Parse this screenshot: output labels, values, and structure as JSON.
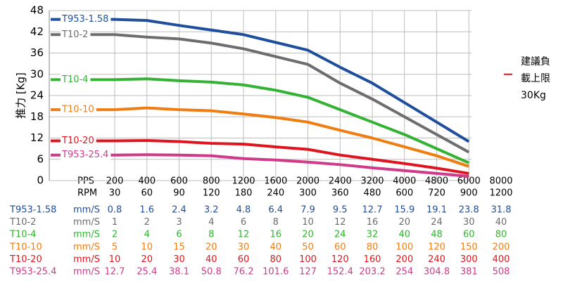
{
  "chart_data": {
    "type": "line",
    "y_label": "推力 [Kg]",
    "ylim": [
      0,
      48
    ],
    "yticks": [
      0,
      6,
      12,
      18,
      24,
      30,
      36,
      42,
      48
    ],
    "grid": true,
    "x_row_label": "PPS",
    "rpm_row_label": "RPM",
    "categories": [
      200,
      400,
      600,
      800,
      1200,
      1600,
      2000,
      2400,
      3200,
      4000,
      4800,
      6000,
      8000
    ],
    "rpm": [
      30,
      60,
      90,
      120,
      180,
      240,
      300,
      360,
      480,
      600,
      720,
      900,
      1200
    ],
    "limit": {
      "value": 30,
      "color": "#e0141e",
      "label_lines": [
        "建議負",
        "載上限",
        "30Kg"
      ]
    },
    "unit_label": "mm/S",
    "series": [
      {
        "name": "T953-1.58",
        "color": "#1f4e9c",
        "values": [
          45.5,
          45.2,
          43.8,
          42.5,
          41.2,
          39,
          36.8,
          32,
          27.5,
          22,
          16.5,
          11,
          null
        ],
        "mm_s": [
          0.8,
          1.6,
          2.4,
          3.2,
          4.8,
          6.4,
          7.9,
          9.5,
          12.7,
          15.9,
          19.1,
          23.8,
          31.8
        ]
      },
      {
        "name": "T10-2",
        "color": "#6d6d6d",
        "values": [
          41.2,
          40.5,
          40,
          38.8,
          37.2,
          35,
          32.8,
          27.5,
          23,
          18,
          13,
          8,
          null
        ],
        "mm_s": [
          1,
          2,
          3,
          4,
          6,
          8,
          10,
          12,
          16,
          20,
          24,
          30,
          40
        ]
      },
      {
        "name": "T10-4",
        "color": "#33b233",
        "values": [
          28.5,
          28.7,
          28.2,
          27.8,
          27,
          25.5,
          23.5,
          20,
          16.5,
          13,
          9,
          5,
          null
        ],
        "mm_s": [
          2,
          4,
          6,
          8,
          12,
          16,
          20,
          24,
          32,
          40,
          48,
          60,
          80
        ]
      },
      {
        "name": "T10-10",
        "color": "#f07d12",
        "values": [
          20,
          20.5,
          20,
          19.7,
          18.8,
          17.8,
          16.5,
          14.2,
          12,
          9.5,
          7,
          4,
          null
        ],
        "mm_s": [
          5,
          10,
          15,
          20,
          30,
          40,
          50,
          60,
          80,
          100,
          120,
          150,
          200
        ]
      },
      {
        "name": "T10-20",
        "color": "#e0141e",
        "values": [
          11.2,
          11.3,
          11,
          10.5,
          10.3,
          9.5,
          8.8,
          7.2,
          6,
          4.8,
          3.5,
          2,
          null
        ],
        "mm_s": [
          10,
          20,
          30,
          40,
          60,
          80,
          100,
          120,
          160,
          200,
          240,
          300,
          400
        ]
      },
      {
        "name": "T953-25.4",
        "color": "#d03a8a",
        "values": [
          7.2,
          7.3,
          7.2,
          7,
          6.2,
          5.8,
          5.2,
          4.5,
          3.6,
          2.8,
          2,
          1.2,
          null
        ],
        "mm_s": [
          12.7,
          25.4,
          38.1,
          50.8,
          76.2,
          101.6,
          127,
          152.4,
          203.2,
          254,
          304.8,
          381,
          508
        ]
      }
    ]
  }
}
